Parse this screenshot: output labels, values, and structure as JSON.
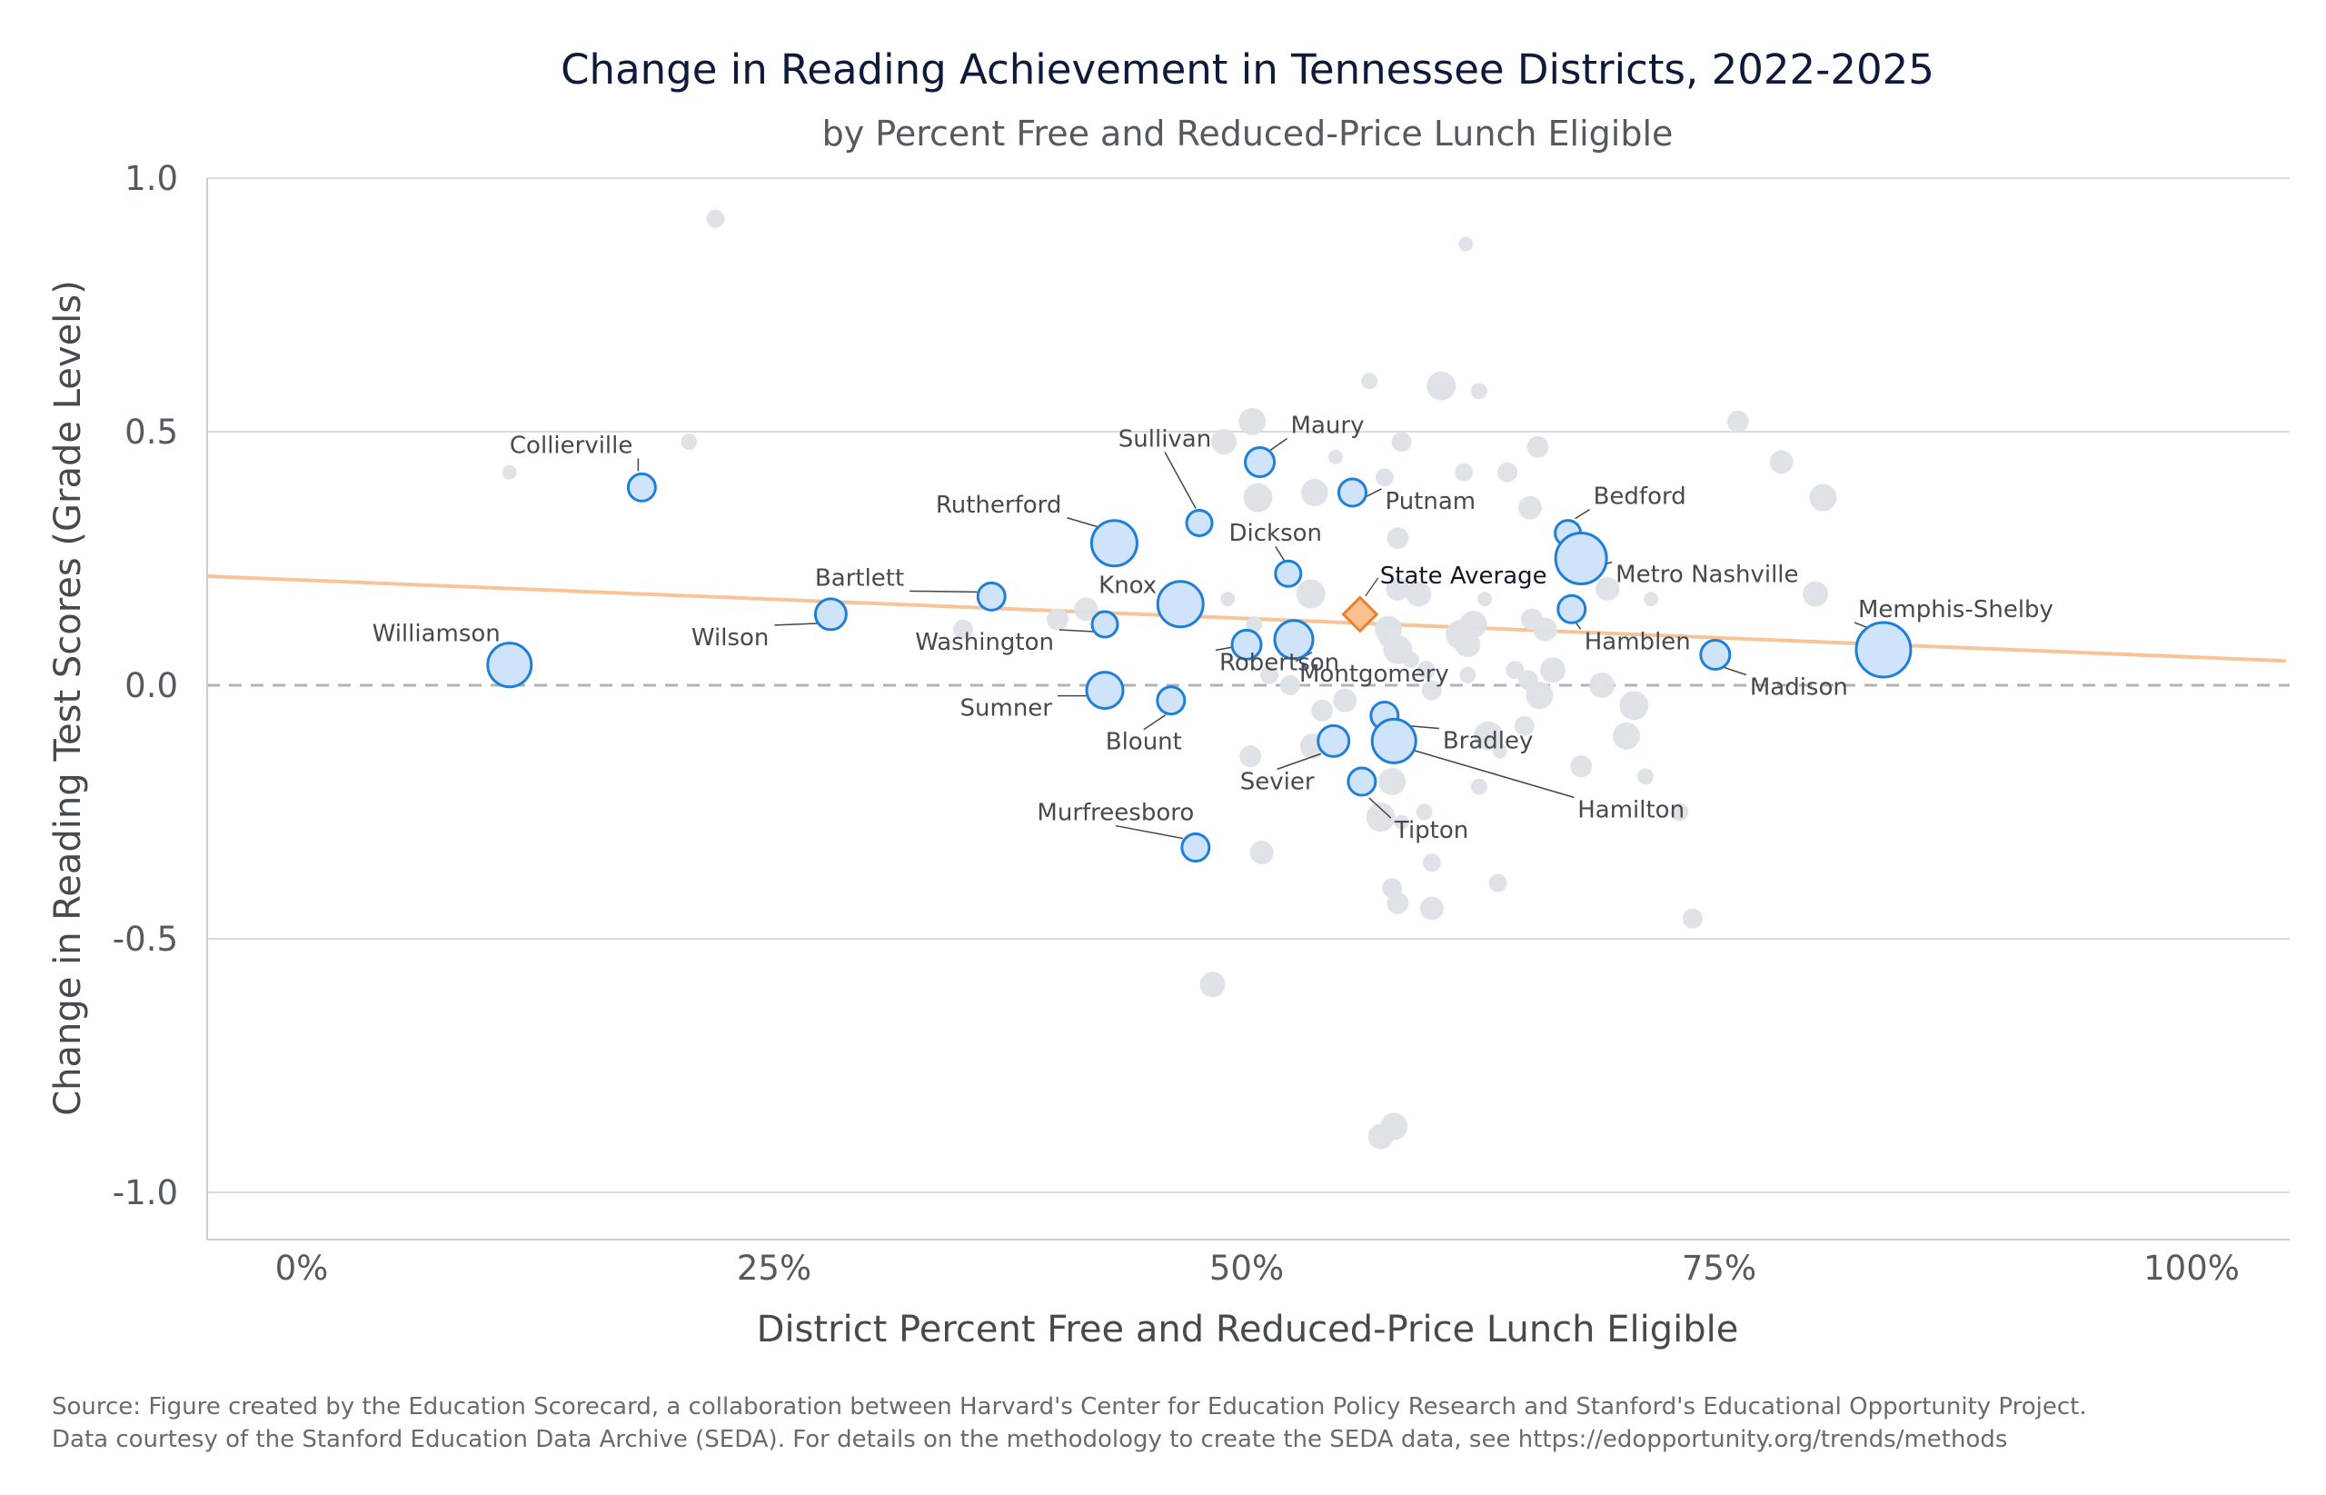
{
  "title": "Change in Reading Achievement in Tennessee Districts, 2022-2025",
  "subtitle": "by Percent Free and Reduced-Price Lunch Eligible",
  "source_line1": "Source: Figure created by the Education Scorecard, a collaboration between Harvard's Center for Education Policy Research and Stanford's Educational Opportunity Project.",
  "source_line2": "Data courtesy of the Stanford Education Data Archive (SEDA). For details on the methodology to create the SEDA data, see https://edopportunity.org/trends/methods",
  "colors": {
    "highlight_fill": "#cfe3fa",
    "highlight_stroke": "#1f7fd6",
    "background_point": "#dde1e6",
    "trend_line": "#f7c49a",
    "state_avg_fill": "#fbc08d",
    "state_avg_stroke": "#e8822e",
    "grid": "#d9dbde",
    "zero_line": "#b0b3b8"
  },
  "chart_data": {
    "type": "scatter",
    "title": "Change in Reading Achievement in Tennessee Districts, 2022-2025",
    "subtitle": "by Percent Free and Reduced-Price Lunch Eligible",
    "xlabel": "District Percent Free and Reduced-Price Lunch Eligible",
    "ylabel": "Change in Reading Test Scores (Grade Levels)",
    "xlim": [
      -0.05,
      1.05
    ],
    "ylim": [
      -1.1,
      1.0
    ],
    "xticks": [
      0,
      0.25,
      0.5,
      0.75,
      1.0
    ],
    "xtick_labels": [
      "0%",
      "25%",
      "50%",
      "75%",
      "100%"
    ],
    "yticks": [
      -1.0,
      -0.5,
      0.0,
      0.5,
      1.0
    ],
    "ytick_labels": [
      "-1.0",
      "-0.5",
      "0.0",
      "0.5",
      "1.0"
    ],
    "grid": "horizontal",
    "trend_line": {
      "x": [
        -0.05,
        1.05
      ],
      "y": [
        0.215,
        0.048
      ]
    },
    "zero_reference": "dashed",
    "state_average": {
      "label": "State Average",
      "x": 0.56,
      "y": 0.14
    },
    "highlighted": [
      {
        "name": "Collierville",
        "x": 0.18,
        "y": 0.39,
        "size": 15
      },
      {
        "name": "Williamson",
        "x": 0.11,
        "y": 0.04,
        "size": 24
      },
      {
        "name": "Wilson",
        "x": 0.28,
        "y": 0.14,
        "size": 17
      },
      {
        "name": "Bartlett",
        "x": 0.365,
        "y": 0.175,
        "size": 15
      },
      {
        "name": "Rutherford",
        "x": 0.43,
        "y": 0.28,
        "size": 25
      },
      {
        "name": "Knox",
        "x": 0.465,
        "y": 0.16,
        "size": 25
      },
      {
        "name": "Washington",
        "x": 0.425,
        "y": 0.12,
        "size": 14
      },
      {
        "name": "Sumner",
        "x": 0.425,
        "y": -0.01,
        "size": 20
      },
      {
        "name": "Blount",
        "x": 0.46,
        "y": -0.03,
        "size": 15
      },
      {
        "name": "Sullivan",
        "x": 0.475,
        "y": 0.32,
        "size": 14
      },
      {
        "name": "Maury",
        "x": 0.507,
        "y": 0.44,
        "size": 16
      },
      {
        "name": "Robertson",
        "x": 0.5,
        "y": 0.08,
        "size": 16
      },
      {
        "name": "Dickson",
        "x": 0.522,
        "y": 0.22,
        "size": 14
      },
      {
        "name": "Montgomery",
        "x": 0.525,
        "y": 0.09,
        "size": 21
      },
      {
        "name": "Putnam",
        "x": 0.556,
        "y": 0.38,
        "size": 15
      },
      {
        "name": "Sevier",
        "x": 0.546,
        "y": -0.11,
        "size": 17
      },
      {
        "name": "Tipton",
        "x": 0.561,
        "y": -0.19,
        "size": 15
      },
      {
        "name": "Bradley",
        "x": 0.573,
        "y": -0.06,
        "size": 15
      },
      {
        "name": "Hamilton",
        "x": 0.578,
        "y": -0.11,
        "size": 24
      },
      {
        "name": "Murfreesboro",
        "x": 0.473,
        "y": -0.32,
        "size": 15
      },
      {
        "name": "Bedford",
        "x": 0.67,
        "y": 0.3,
        "size": 14
      },
      {
        "name": "Metro Nashville",
        "x": 0.677,
        "y": 0.25,
        "size": 28
      },
      {
        "name": "Hamblen",
        "x": 0.672,
        "y": 0.15,
        "size": 15
      },
      {
        "name": "Madison",
        "x": 0.748,
        "y": 0.06,
        "size": 16
      },
      {
        "name": "Memphis-Shelby",
        "x": 0.837,
        "y": 0.07,
        "size": 30
      }
    ],
    "other_districts": [
      {
        "x": 0.11,
        "y": 0.42
      },
      {
        "x": 0.205,
        "y": 0.48
      },
      {
        "x": 0.219,
        "y": 0.92
      },
      {
        "x": 0.35,
        "y": 0.11
      },
      {
        "x": 0.4,
        "y": 0.13
      },
      {
        "x": 0.415,
        "y": 0.15
      },
      {
        "x": 0.488,
        "y": 0.48
      },
      {
        "x": 0.503,
        "y": 0.52
      },
      {
        "x": 0.506,
        "y": 0.37
      },
      {
        "x": 0.49,
        "y": 0.17
      },
      {
        "x": 0.504,
        "y": 0.12
      },
      {
        "x": 0.512,
        "y": 0.02
      },
      {
        "x": 0.523,
        "y": 0.0
      },
      {
        "x": 0.502,
        "y": -0.14
      },
      {
        "x": 0.508,
        "y": -0.33
      },
      {
        "x": 0.482,
        "y": -0.59
      },
      {
        "x": 0.536,
        "y": 0.38
      },
      {
        "x": 0.534,
        "y": 0.18
      },
      {
        "x": 0.547,
        "y": 0.45
      },
      {
        "x": 0.565,
        "y": 0.6
      },
      {
        "x": 0.573,
        "y": 0.41
      },
      {
        "x": 0.582,
        "y": 0.48
      },
      {
        "x": 0.58,
        "y": 0.29
      },
      {
        "x": 0.58,
        "y": 0.19
      },
      {
        "x": 0.591,
        "y": 0.18
      },
      {
        "x": 0.575,
        "y": 0.11
      },
      {
        "x": 0.58,
        "y": 0.07
      },
      {
        "x": 0.574,
        "y": 0.09
      },
      {
        "x": 0.587,
        "y": 0.05
      },
      {
        "x": 0.595,
        "y": 0.03
      },
      {
        "x": 0.598,
        "y": -0.01
      },
      {
        "x": 0.54,
        "y": -0.05
      },
      {
        "x": 0.552,
        "y": -0.03
      },
      {
        "x": 0.535,
        "y": -0.12
      },
      {
        "x": 0.577,
        "y": -0.19
      },
      {
        "x": 0.571,
        "y": -0.26
      },
      {
        "x": 0.582,
        "y": -0.27
      },
      {
        "x": 0.594,
        "y": -0.25
      },
      {
        "x": 0.598,
        "y": -0.35
      },
      {
        "x": 0.577,
        "y": -0.4
      },
      {
        "x": 0.58,
        "y": -0.43
      },
      {
        "x": 0.598,
        "y": -0.44
      },
      {
        "x": 0.571,
        "y": -0.89
      },
      {
        "x": 0.578,
        "y": -0.87
      },
      {
        "x": 0.603,
        "y": 0.59
      },
      {
        "x": 0.616,
        "y": 0.87
      },
      {
        "x": 0.623,
        "y": 0.58
      },
      {
        "x": 0.615,
        "y": 0.42
      },
      {
        "x": 0.638,
        "y": 0.42
      },
      {
        "x": 0.654,
        "y": 0.47
      },
      {
        "x": 0.65,
        "y": 0.35
      },
      {
        "x": 0.617,
        "y": 0.08
      },
      {
        "x": 0.62,
        "y": 0.12
      },
      {
        "x": 0.613,
        "y": 0.1
      },
      {
        "x": 0.626,
        "y": 0.17
      },
      {
        "x": 0.617,
        "y": 0.02
      },
      {
        "x": 0.642,
        "y": 0.03
      },
      {
        "x": 0.649,
        "y": 0.01
      },
      {
        "x": 0.651,
        "y": 0.13
      },
      {
        "x": 0.658,
        "y": 0.11
      },
      {
        "x": 0.662,
        "y": 0.03
      },
      {
        "x": 0.655,
        "y": -0.02
      },
      {
        "x": 0.628,
        "y": -0.1
      },
      {
        "x": 0.634,
        "y": -0.13
      },
      {
        "x": 0.623,
        "y": -0.2
      },
      {
        "x": 0.633,
        "y": -0.39
      },
      {
        "x": 0.647,
        "y": -0.08
      },
      {
        "x": 0.677,
        "y": -0.16
      },
      {
        "x": 0.691,
        "y": 0.19
      },
      {
        "x": 0.688,
        "y": 0.0
      },
      {
        "x": 0.701,
        "y": -0.1
      },
      {
        "x": 0.705,
        "y": -0.04
      },
      {
        "x": 0.714,
        "y": 0.17
      },
      {
        "x": 0.711,
        "y": -0.18
      },
      {
        "x": 0.729,
        "y": -0.25
      },
      {
        "x": 0.736,
        "y": -0.46
      },
      {
        "x": 0.76,
        "y": 0.52
      },
      {
        "x": 0.783,
        "y": 0.44
      },
      {
        "x": 0.801,
        "y": 0.18
      },
      {
        "x": 0.805,
        "y": 0.37
      }
    ]
  }
}
